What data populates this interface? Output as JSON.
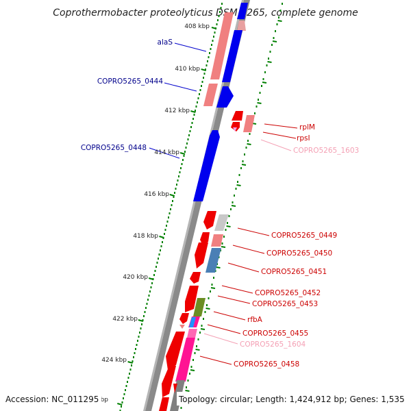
{
  "title": "Coprothermobacter proteolyticus DSM 5265, complete genome",
  "ticks": [
    "408 kbp",
    "410 kbp",
    "412 kbp",
    "414 kbp",
    "416 kbp",
    "418 kbp",
    "420 kbp",
    "422 kbp",
    "424 kbp"
  ],
  "tick_partial": "bp",
  "labels_left": [
    "alaS",
    "COPRO5265_0444",
    "COPRO5265_0448"
  ],
  "labels_right": [
    "rplM",
    "rpsI",
    "COPRO5265_1603",
    "COPRO5265_0449",
    "COPRO5265_0450",
    "COPRO5265_0451",
    "COPRO5265_0452",
    "COPRO5265_0453",
    "rfbA",
    "COPRO5265_0455",
    "COPRO5265_1604",
    "COPRO5265_0458"
  ],
  "footer": {
    "accession": "Accession: NC_011295",
    "topology": "Topology: circular; Length: 1,424,912 bp; Genes: 1,535"
  },
  "colors": {
    "forward_cds": "#0000ee",
    "reverse_cds": "#ee0000",
    "rna_gene": "#f08080",
    "label_blue": "#00008b",
    "label_red": "#cc0000",
    "label_pink": "#f4a0b4",
    "tick_green": "#008000",
    "backbone": "#808080"
  }
}
